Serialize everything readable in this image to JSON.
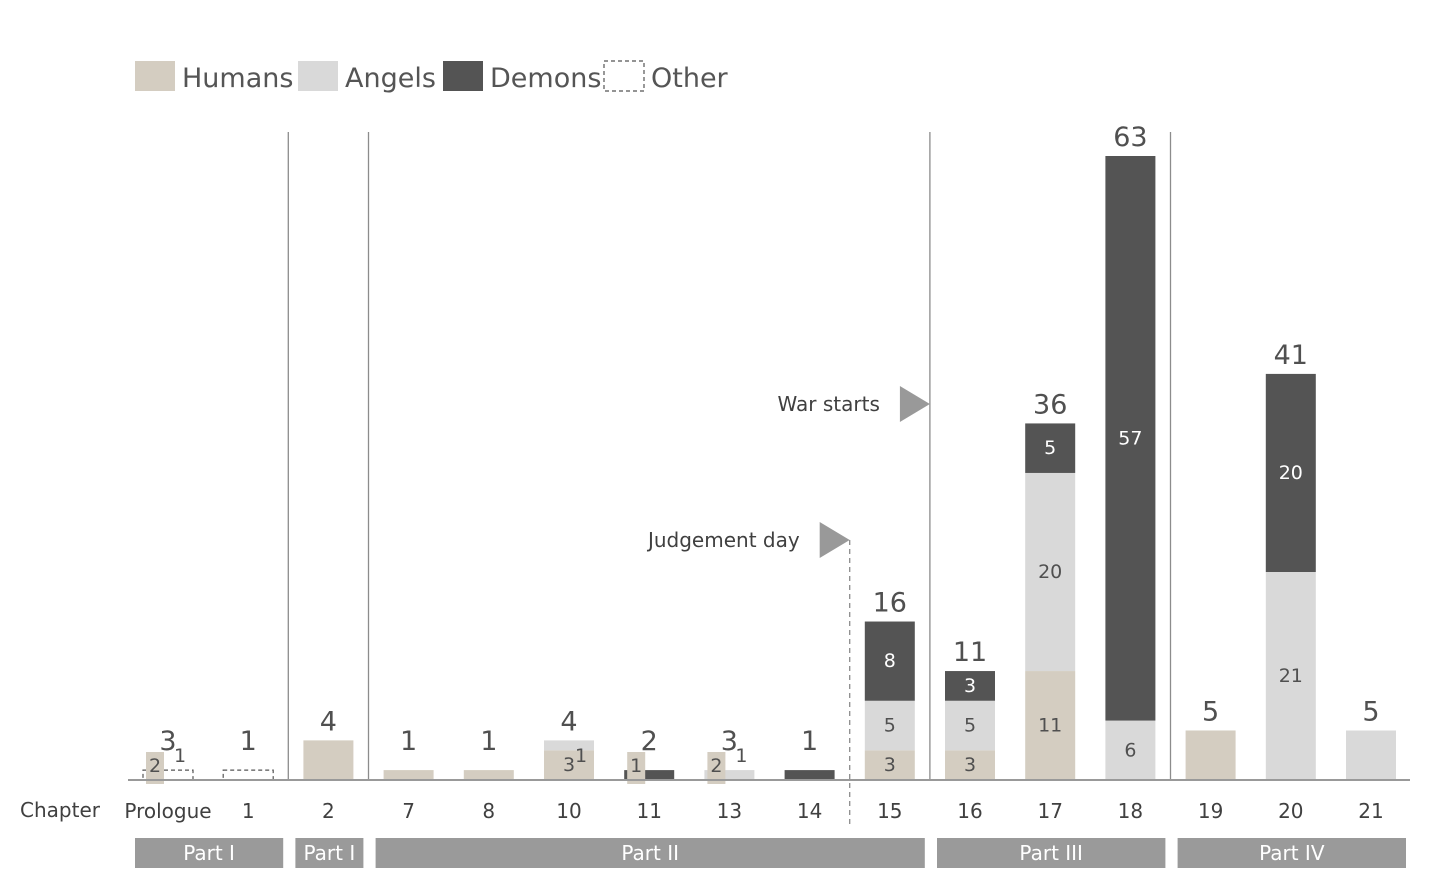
{
  "chart_data": {
    "type": "bar",
    "stacked": true,
    "x_axis_title": "Chapter",
    "categories": [
      "Prologue",
      "1",
      "2",
      "7",
      "8",
      "10",
      "11",
      "13",
      "14",
      "15",
      "16",
      "17",
      "18",
      "19",
      "20",
      "21"
    ],
    "series": [
      {
        "name": "Humans",
        "color": "#d4cdc1",
        "style": "solid",
        "values": [
          0,
          0,
          4,
          1,
          1,
          3,
          0,
          0,
          0,
          3,
          3,
          11,
          0,
          5,
          0,
          0
        ]
      },
      {
        "name": "Angels",
        "color": "#d9d9d9",
        "style": "solid",
        "values": [
          0,
          0,
          0,
          0,
          0,
          1,
          0,
          1,
          0,
          5,
          5,
          20,
          6,
          0,
          21,
          5
        ]
      },
      {
        "name": "Demons",
        "color": "#545454",
        "style": "solid",
        "values": [
          0,
          0,
          0,
          0,
          0,
          0,
          1,
          0,
          1,
          8,
          3,
          5,
          57,
          0,
          20,
          0
        ]
      },
      {
        "name": "Other",
        "color": "#555555",
        "style": "dashed",
        "values": [
          1,
          1,
          0,
          0,
          0,
          0,
          0,
          0,
          0,
          0,
          0,
          0,
          0,
          0,
          0,
          0
        ]
      }
    ],
    "small_markers": [
      {
        "category": "Prologue",
        "series": "Humans",
        "value": 2
      },
      {
        "category": "11",
        "series": "Humans",
        "value": 1
      },
      {
        "category": "13",
        "series": "Humans",
        "value": 2
      }
    ],
    "totals": [
      "3",
      "1",
      "4",
      "1",
      "1",
      "4",
      "2",
      "3",
      "1",
      "16",
      "11",
      "36",
      "63",
      "5",
      "41",
      "5"
    ],
    "segment_labels": [
      {
        "category": "Prologue",
        "series": "Humans",
        "text": "2"
      },
      {
        "category": "Prologue",
        "series": "Other",
        "text": "1"
      },
      {
        "category": "10",
        "series": "Humans",
        "text": "3"
      },
      {
        "category": "10",
        "series": "Angels",
        "text": "1"
      },
      {
        "category": "11",
        "series": "Humans",
        "text": "1"
      },
      {
        "category": "11",
        "series": "Demons",
        "text": "1"
      },
      {
        "category": "13",
        "series": "Humans",
        "text": "2"
      },
      {
        "category": "13",
        "series": "Angels",
        "text": "1"
      },
      {
        "category": "15",
        "series": "Humans",
        "text": "3"
      },
      {
        "category": "15",
        "series": "Angels",
        "text": "5"
      },
      {
        "category": "15",
        "series": "Demons",
        "text": "8"
      },
      {
        "category": "16",
        "series": "Humans",
        "text": "3"
      },
      {
        "category": "16",
        "series": "Angels",
        "text": "5"
      },
      {
        "category": "16",
        "series": "Demons",
        "text": "3"
      },
      {
        "category": "17",
        "series": "Humans",
        "text": "11"
      },
      {
        "category": "17",
        "series": "Angels",
        "text": "20"
      },
      {
        "category": "17",
        "series": "Demons",
        "text": "5"
      },
      {
        "category": "18",
        "series": "Angels",
        "text": "6"
      },
      {
        "category": "18",
        "series": "Demons",
        "text": "57"
      },
      {
        "category": "20",
        "series": "Angels",
        "text": "21"
      },
      {
        "category": "20",
        "series": "Demons",
        "text": "20"
      }
    ],
    "parts": [
      {
        "label": "Part I",
        "from": "Prologue",
        "to": "1"
      },
      {
        "label": "Part I",
        "from": "2",
        "to": "2"
      },
      {
        "label": "Part II",
        "from": "7",
        "to": "15"
      },
      {
        "label": "Part III",
        "from": "16",
        "to": "18"
      },
      {
        "label": "Part IV",
        "from": "19",
        "to": "21"
      }
    ],
    "dividers_after": [
      "1",
      "2",
      "15",
      "18"
    ],
    "events": [
      {
        "label": "Judgement day",
        "after_category": "14",
        "line": "dashed"
      },
      {
        "label": "War starts",
        "after_category": "15",
        "line": "solid"
      }
    ],
    "ylim": [
      0,
      63
    ],
    "legend_position": "top-left",
    "grid": false
  }
}
